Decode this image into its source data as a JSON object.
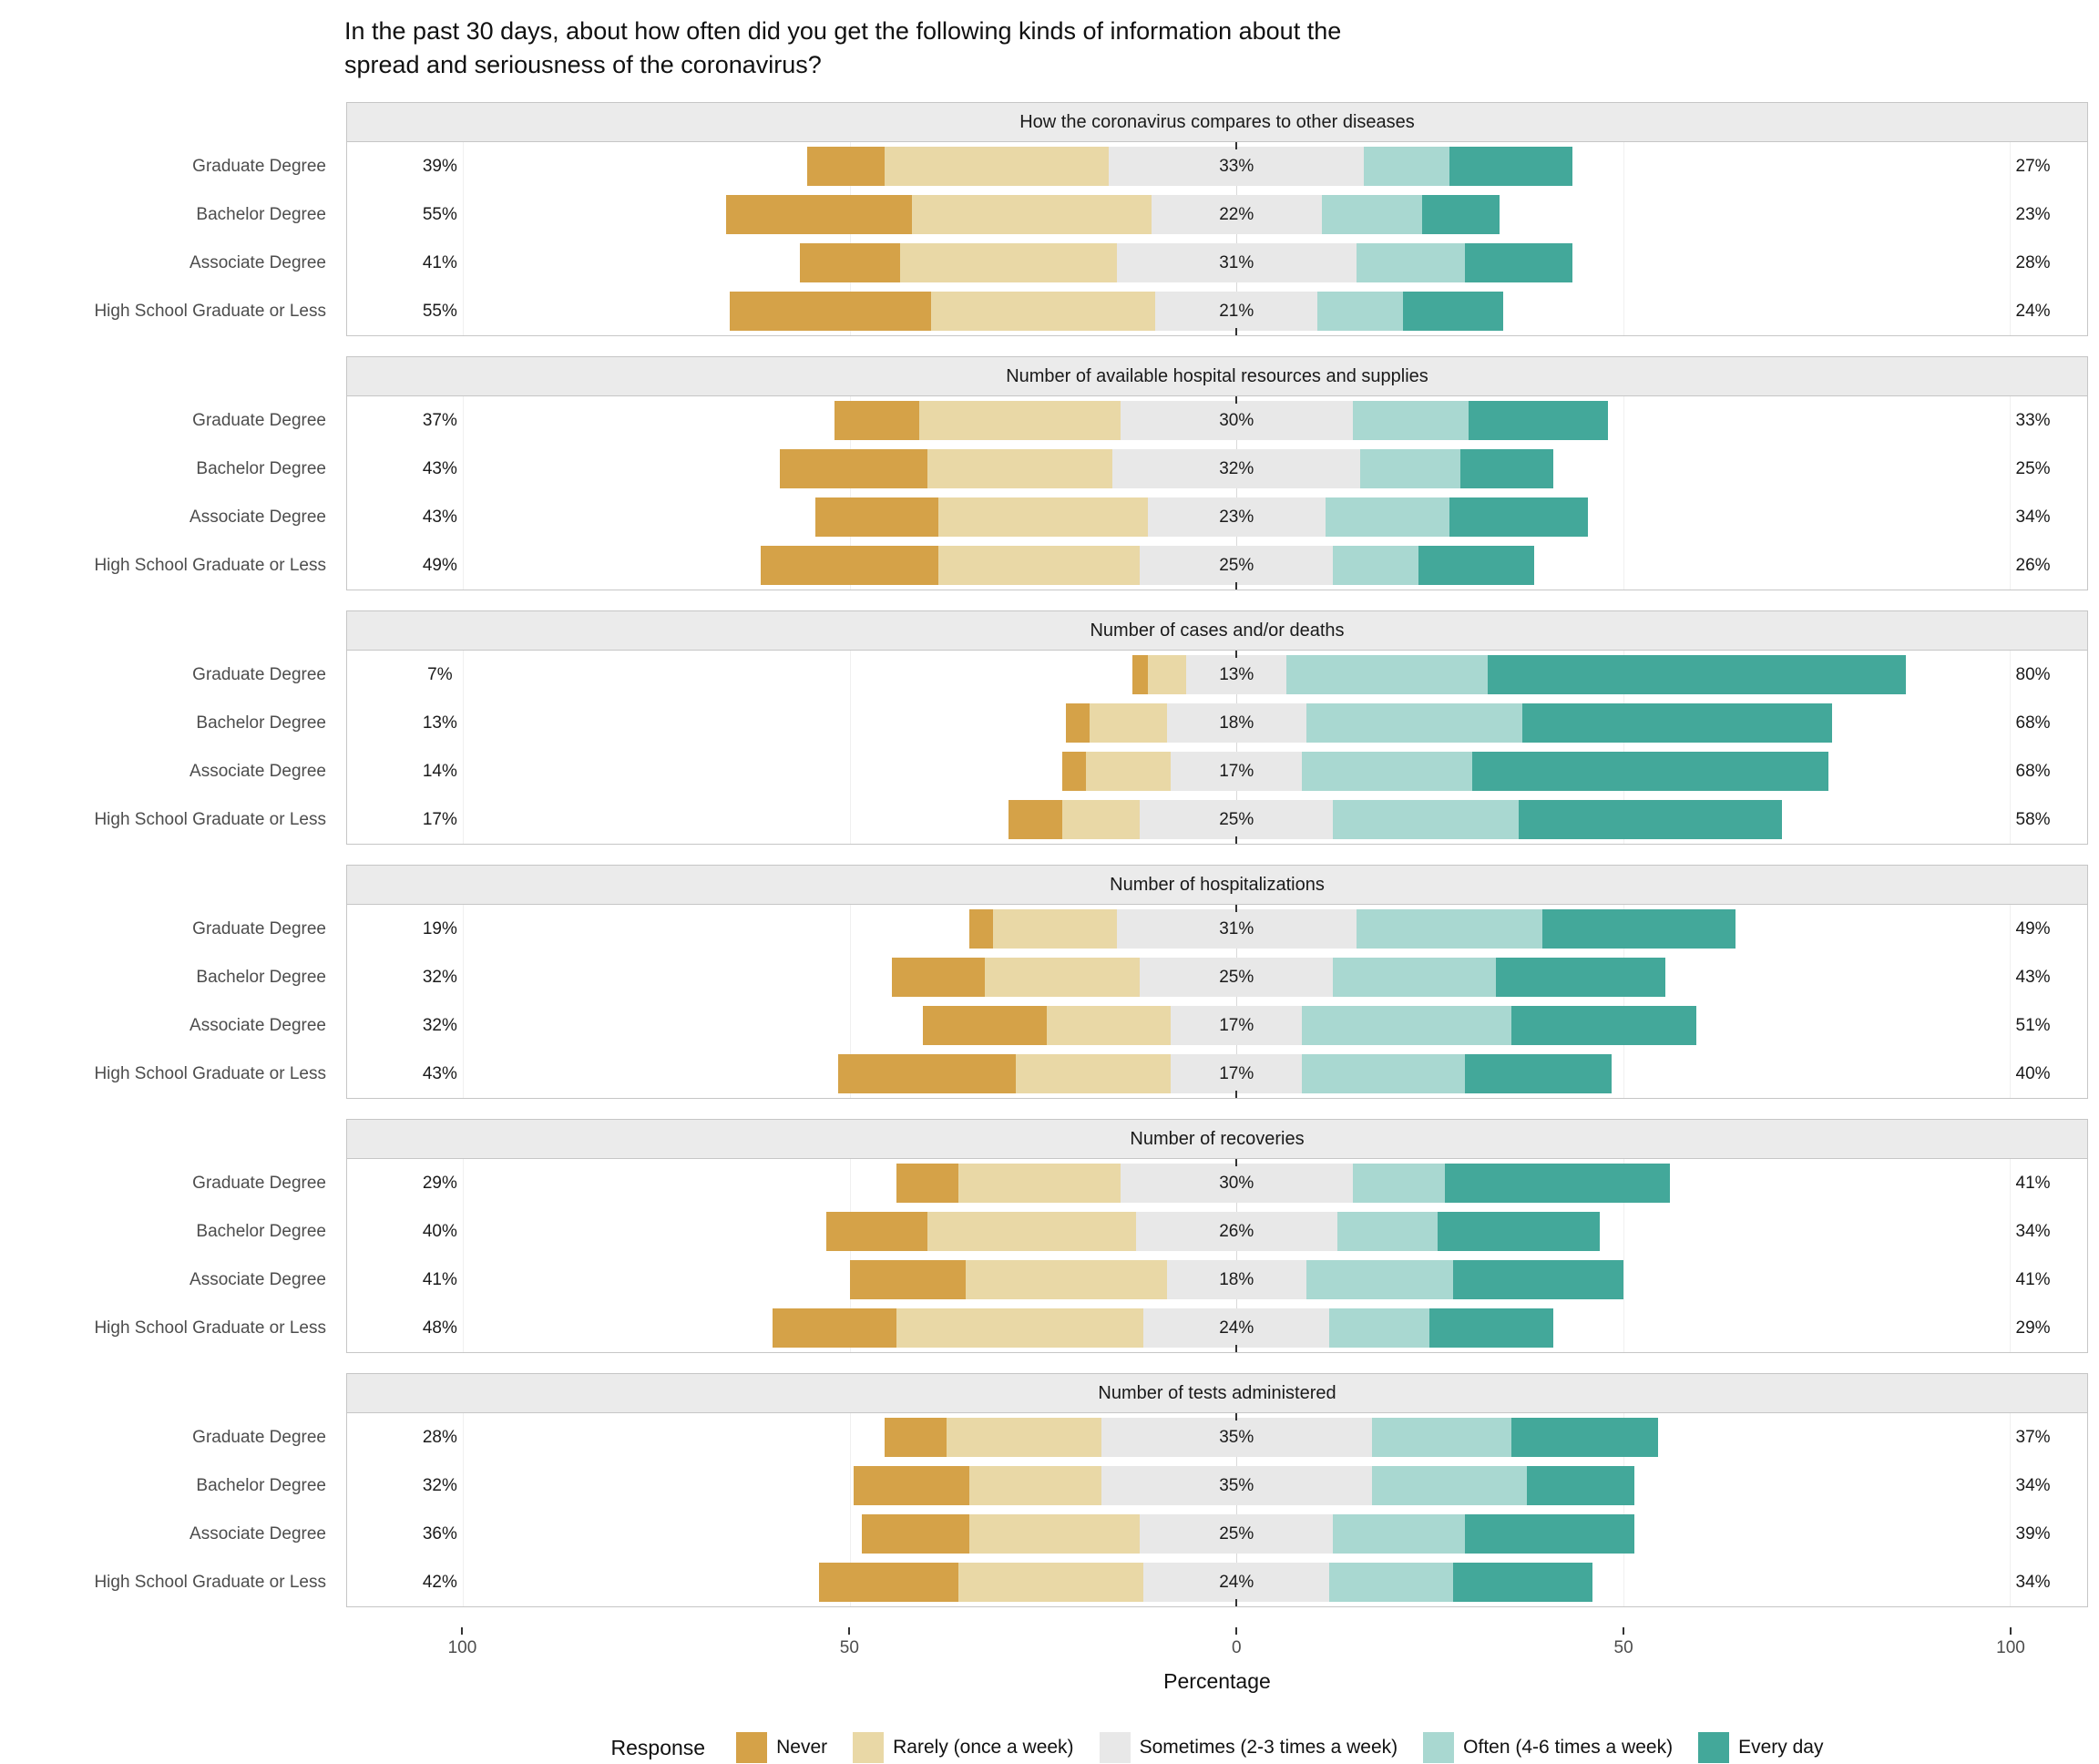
{
  "axis_ticks": [
    "100",
    "50",
    "0",
    "50",
    "100"
  ],
  "legend": {
    "title": "Response",
    "items": [
      {
        "key": "never",
        "label": "Never",
        "color": "#d5a248"
      },
      {
        "key": "rarely",
        "label": "Rarely (once a week)",
        "color": "#e9d8a6"
      },
      {
        "key": "sometimes",
        "label": "Sometimes (2-3 times a week)",
        "color": "#e8e8e8"
      },
      {
        "key": "often",
        "label": "Often (4-6 times a week)",
        "color": "#a9d8d1"
      },
      {
        "key": "everyday",
        "label": "Every day",
        "color": "#43a89a"
      }
    ]
  },
  "chart_data": {
    "type": "bar",
    "variant": "diverging-stacked-likert",
    "title": "In the past 30 days, about how often did you get the following kinds of information about the\nspread and seriousness of the coronavirus?",
    "xlabel": "Percentage",
    "xlim": [
      -115,
      110
    ],
    "gridlines": [
      -100,
      -50,
      0,
      50,
      100
    ],
    "label_x": {
      "left": -103,
      "right": 103
    },
    "categories": [
      "Graduate Degree",
      "Bachelor Degree",
      "Associate Degree",
      "High School Graduate or Less"
    ],
    "responses": [
      "Never",
      "Rarely (once a week)",
      "Sometimes (2-3 times a week)",
      "Often (4-6 times a week)",
      "Every day"
    ],
    "segment_keys": [
      "never",
      "rarely",
      "sometimes",
      "often",
      "everyday"
    ],
    "note": "left_label = Never+Rarely %, mid_label = Sometimes %, right_label = Often+Every day %; segment values estimated from bar widths and consistent with labels",
    "panels": [
      {
        "title": "How the coronavirus compares to other diseases",
        "rows": [
          {
            "category": "Graduate Degree",
            "left_label": "39%",
            "mid_label": "33%",
            "right_label": "27%",
            "values": {
              "never": 10,
              "rarely": 29,
              "sometimes": 33,
              "often": 11,
              "everyday": 16
            }
          },
          {
            "category": "Bachelor Degree",
            "left_label": "55%",
            "mid_label": "22%",
            "right_label": "23%",
            "values": {
              "never": 24,
              "rarely": 31,
              "sometimes": 22,
              "often": 13,
              "everyday": 10
            }
          },
          {
            "category": "Associate Degree",
            "left_label": "41%",
            "mid_label": "31%",
            "right_label": "28%",
            "values": {
              "never": 13,
              "rarely": 28,
              "sometimes": 31,
              "often": 14,
              "everyday": 14
            }
          },
          {
            "category": "High School Graduate or Less",
            "left_label": "55%",
            "mid_label": "21%",
            "right_label": "24%",
            "values": {
              "never": 26,
              "rarely": 29,
              "sometimes": 21,
              "often": 11,
              "everyday": 13
            }
          }
        ]
      },
      {
        "title": "Number of available hospital resources and supplies",
        "rows": [
          {
            "category": "Graduate Degree",
            "left_label": "37%",
            "mid_label": "30%",
            "right_label": "33%",
            "values": {
              "never": 11,
              "rarely": 26,
              "sometimes": 30,
              "often": 15,
              "everyday": 18
            }
          },
          {
            "category": "Bachelor Degree",
            "left_label": "43%",
            "mid_label": "32%",
            "right_label": "25%",
            "values": {
              "never": 19,
              "rarely": 24,
              "sometimes": 32,
              "often": 13,
              "everyday": 12
            }
          },
          {
            "category": "Associate Degree",
            "left_label": "43%",
            "mid_label": "23%",
            "right_label": "34%",
            "values": {
              "never": 16,
              "rarely": 27,
              "sometimes": 23,
              "often": 16,
              "everyday": 18
            }
          },
          {
            "category": "High School Graduate or Less",
            "left_label": "49%",
            "mid_label": "25%",
            "right_label": "26%",
            "values": {
              "never": 23,
              "rarely": 26,
              "sometimes": 25,
              "often": 11,
              "everyday": 15
            }
          }
        ]
      },
      {
        "title": "Number of cases and/or deaths",
        "rows": [
          {
            "category": "Graduate Degree",
            "left_label": "7%",
            "mid_label": "13%",
            "right_label": "80%",
            "values": {
              "never": 2,
              "rarely": 5,
              "sometimes": 13,
              "often": 26,
              "everyday": 54
            }
          },
          {
            "category": "Bachelor Degree",
            "left_label": "13%",
            "mid_label": "18%",
            "right_label": "68%",
            "values": {
              "never": 3,
              "rarely": 10,
              "sometimes": 18,
              "often": 28,
              "everyday": 40
            }
          },
          {
            "category": "Associate Degree",
            "left_label": "14%",
            "mid_label": "17%",
            "right_label": "68%",
            "values": {
              "never": 3,
              "rarely": 11,
              "sometimes": 17,
              "often": 22,
              "everyday": 46
            }
          },
          {
            "category": "High School Graduate or Less",
            "left_label": "17%",
            "mid_label": "25%",
            "right_label": "58%",
            "values": {
              "never": 7,
              "rarely": 10,
              "sometimes": 25,
              "often": 24,
              "everyday": 34
            }
          }
        ]
      },
      {
        "title": "Number of hospitalizations",
        "rows": [
          {
            "category": "Graduate Degree",
            "left_label": "19%",
            "mid_label": "31%",
            "right_label": "49%",
            "values": {
              "never": 3,
              "rarely": 16,
              "sometimes": 31,
              "often": 24,
              "everyday": 25
            }
          },
          {
            "category": "Bachelor Degree",
            "left_label": "32%",
            "mid_label": "25%",
            "right_label": "43%",
            "values": {
              "never": 12,
              "rarely": 20,
              "sometimes": 25,
              "often": 21,
              "everyday": 22
            }
          },
          {
            "category": "Associate Degree",
            "left_label": "32%",
            "mid_label": "17%",
            "right_label": "51%",
            "values": {
              "never": 16,
              "rarely": 16,
              "sometimes": 17,
              "often": 27,
              "everyday": 24
            }
          },
          {
            "category": "High School Graduate or Less",
            "left_label": "43%",
            "mid_label": "17%",
            "right_label": "40%",
            "values": {
              "never": 23,
              "rarely": 20,
              "sometimes": 17,
              "often": 21,
              "everyday": 19
            }
          }
        ]
      },
      {
        "title": "Number of recoveries",
        "rows": [
          {
            "category": "Graduate Degree",
            "left_label": "29%",
            "mid_label": "30%",
            "right_label": "41%",
            "values": {
              "never": 8,
              "rarely": 21,
              "sometimes": 30,
              "often": 12,
              "everyday": 29
            }
          },
          {
            "category": "Bachelor Degree",
            "left_label": "40%",
            "mid_label": "26%",
            "right_label": "34%",
            "values": {
              "never": 13,
              "rarely": 27,
              "sometimes": 26,
              "often": 13,
              "everyday": 21
            }
          },
          {
            "category": "Associate Degree",
            "left_label": "41%",
            "mid_label": "18%",
            "right_label": "41%",
            "values": {
              "never": 15,
              "rarely": 26,
              "sometimes": 18,
              "often": 19,
              "everyday": 22
            }
          },
          {
            "category": "High School Graduate or Less",
            "left_label": "48%",
            "mid_label": "24%",
            "right_label": "29%",
            "values": {
              "never": 16,
              "rarely": 32,
              "sometimes": 24,
              "often": 13,
              "everyday": 16
            }
          }
        ]
      },
      {
        "title": "Number of tests administered",
        "rows": [
          {
            "category": "Graduate Degree",
            "left_label": "28%",
            "mid_label": "35%",
            "right_label": "37%",
            "values": {
              "never": 8,
              "rarely": 20,
              "sometimes": 35,
              "often": 18,
              "everyday": 19
            }
          },
          {
            "category": "Bachelor Degree",
            "left_label": "32%",
            "mid_label": "35%",
            "right_label": "34%",
            "values": {
              "never": 15,
              "rarely": 17,
              "sometimes": 35,
              "often": 20,
              "everyday": 14
            }
          },
          {
            "category": "Associate Degree",
            "left_label": "36%",
            "mid_label": "25%",
            "right_label": "39%",
            "values": {
              "never": 14,
              "rarely": 22,
              "sometimes": 25,
              "often": 17,
              "everyday": 22
            }
          },
          {
            "category": "High School Graduate or Less",
            "left_label": "42%",
            "mid_label": "24%",
            "right_label": "34%",
            "values": {
              "never": 18,
              "rarely": 24,
              "sometimes": 24,
              "often": 16,
              "everyday": 18
            }
          }
        ]
      }
    ]
  }
}
